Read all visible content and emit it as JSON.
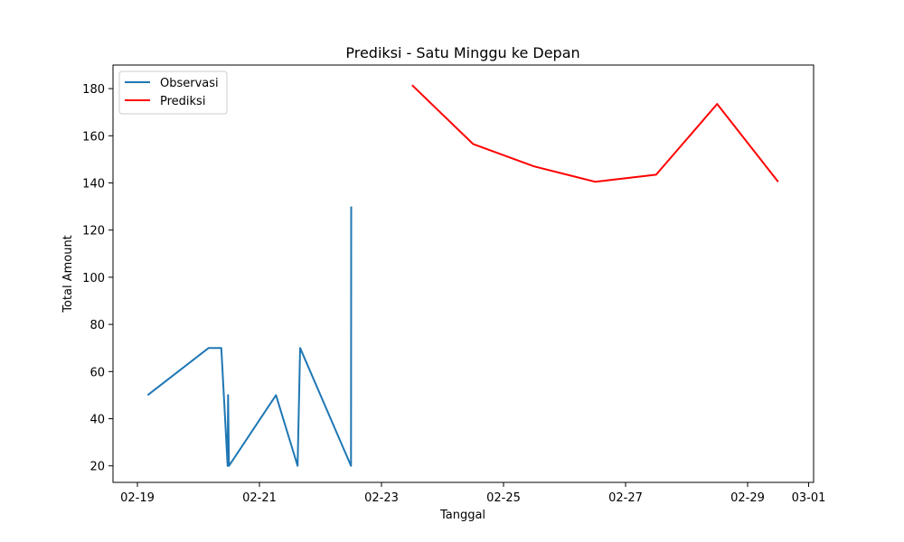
{
  "chart_data": {
    "type": "line",
    "title": "Prediksi - Satu Minggu ke Depan",
    "xlabel": "Tanggal",
    "ylabel": "Total Amount",
    "x_axis_type": "date",
    "xlim": [
      "2024-02-19T00:00",
      "2024-03-01T00:00"
    ],
    "ylim": [
      13,
      190
    ],
    "x_ticks": [
      {
        "date": "2024-02-19T00:00",
        "label": "02-19"
      },
      {
        "date": "2024-02-21T00:00",
        "label": "02-21"
      },
      {
        "date": "2024-02-23T00:00",
        "label": "02-23"
      },
      {
        "date": "2024-02-25T00:00",
        "label": "02-25"
      },
      {
        "date": "2024-02-27T00:00",
        "label": "02-27"
      },
      {
        "date": "2024-02-29T00:00",
        "label": "02-29"
      },
      {
        "date": "2024-03-01T00:00",
        "label": "03-01"
      }
    ],
    "y_ticks": [
      20,
      40,
      60,
      80,
      100,
      120,
      140,
      160,
      180
    ],
    "grid": false,
    "legend": "top-left",
    "series": [
      {
        "name": "Observasi",
        "color": "#1f77b4",
        "points": [
          {
            "x": "2024-02-19T04:00",
            "y": 50
          },
          {
            "x": "2024-02-20T04:00",
            "y": 70
          },
          {
            "x": "2024-02-20T09:00",
            "y": 70
          },
          {
            "x": "2024-02-20T11:30",
            "y": 20
          },
          {
            "x": "2024-02-20T11:40",
            "y": 50
          },
          {
            "x": "2024-02-20T12:00",
            "y": 20
          },
          {
            "x": "2024-02-21T06:30",
            "y": 50
          },
          {
            "x": "2024-02-21T15:00",
            "y": 20
          },
          {
            "x": "2024-02-21T16:00",
            "y": 70
          },
          {
            "x": "2024-02-22T12:00",
            "y": 20
          },
          {
            "x": "2024-02-22T12:05",
            "y": 130
          }
        ]
      },
      {
        "name": "Prediksi",
        "color": "#ff0000",
        "points": [
          {
            "x": "2024-02-23T12:00",
            "y": 181.5
          },
          {
            "x": "2024-02-24T12:00",
            "y": 156.5
          },
          {
            "x": "2024-02-25T12:00",
            "y": 147
          },
          {
            "x": "2024-02-26T12:00",
            "y": 140.5
          },
          {
            "x": "2024-02-27T12:00",
            "y": 143.5
          },
          {
            "x": "2024-02-28T12:00",
            "y": 173.5
          },
          {
            "x": "2024-02-29T12:00",
            "y": 140.5
          }
        ]
      }
    ]
  }
}
